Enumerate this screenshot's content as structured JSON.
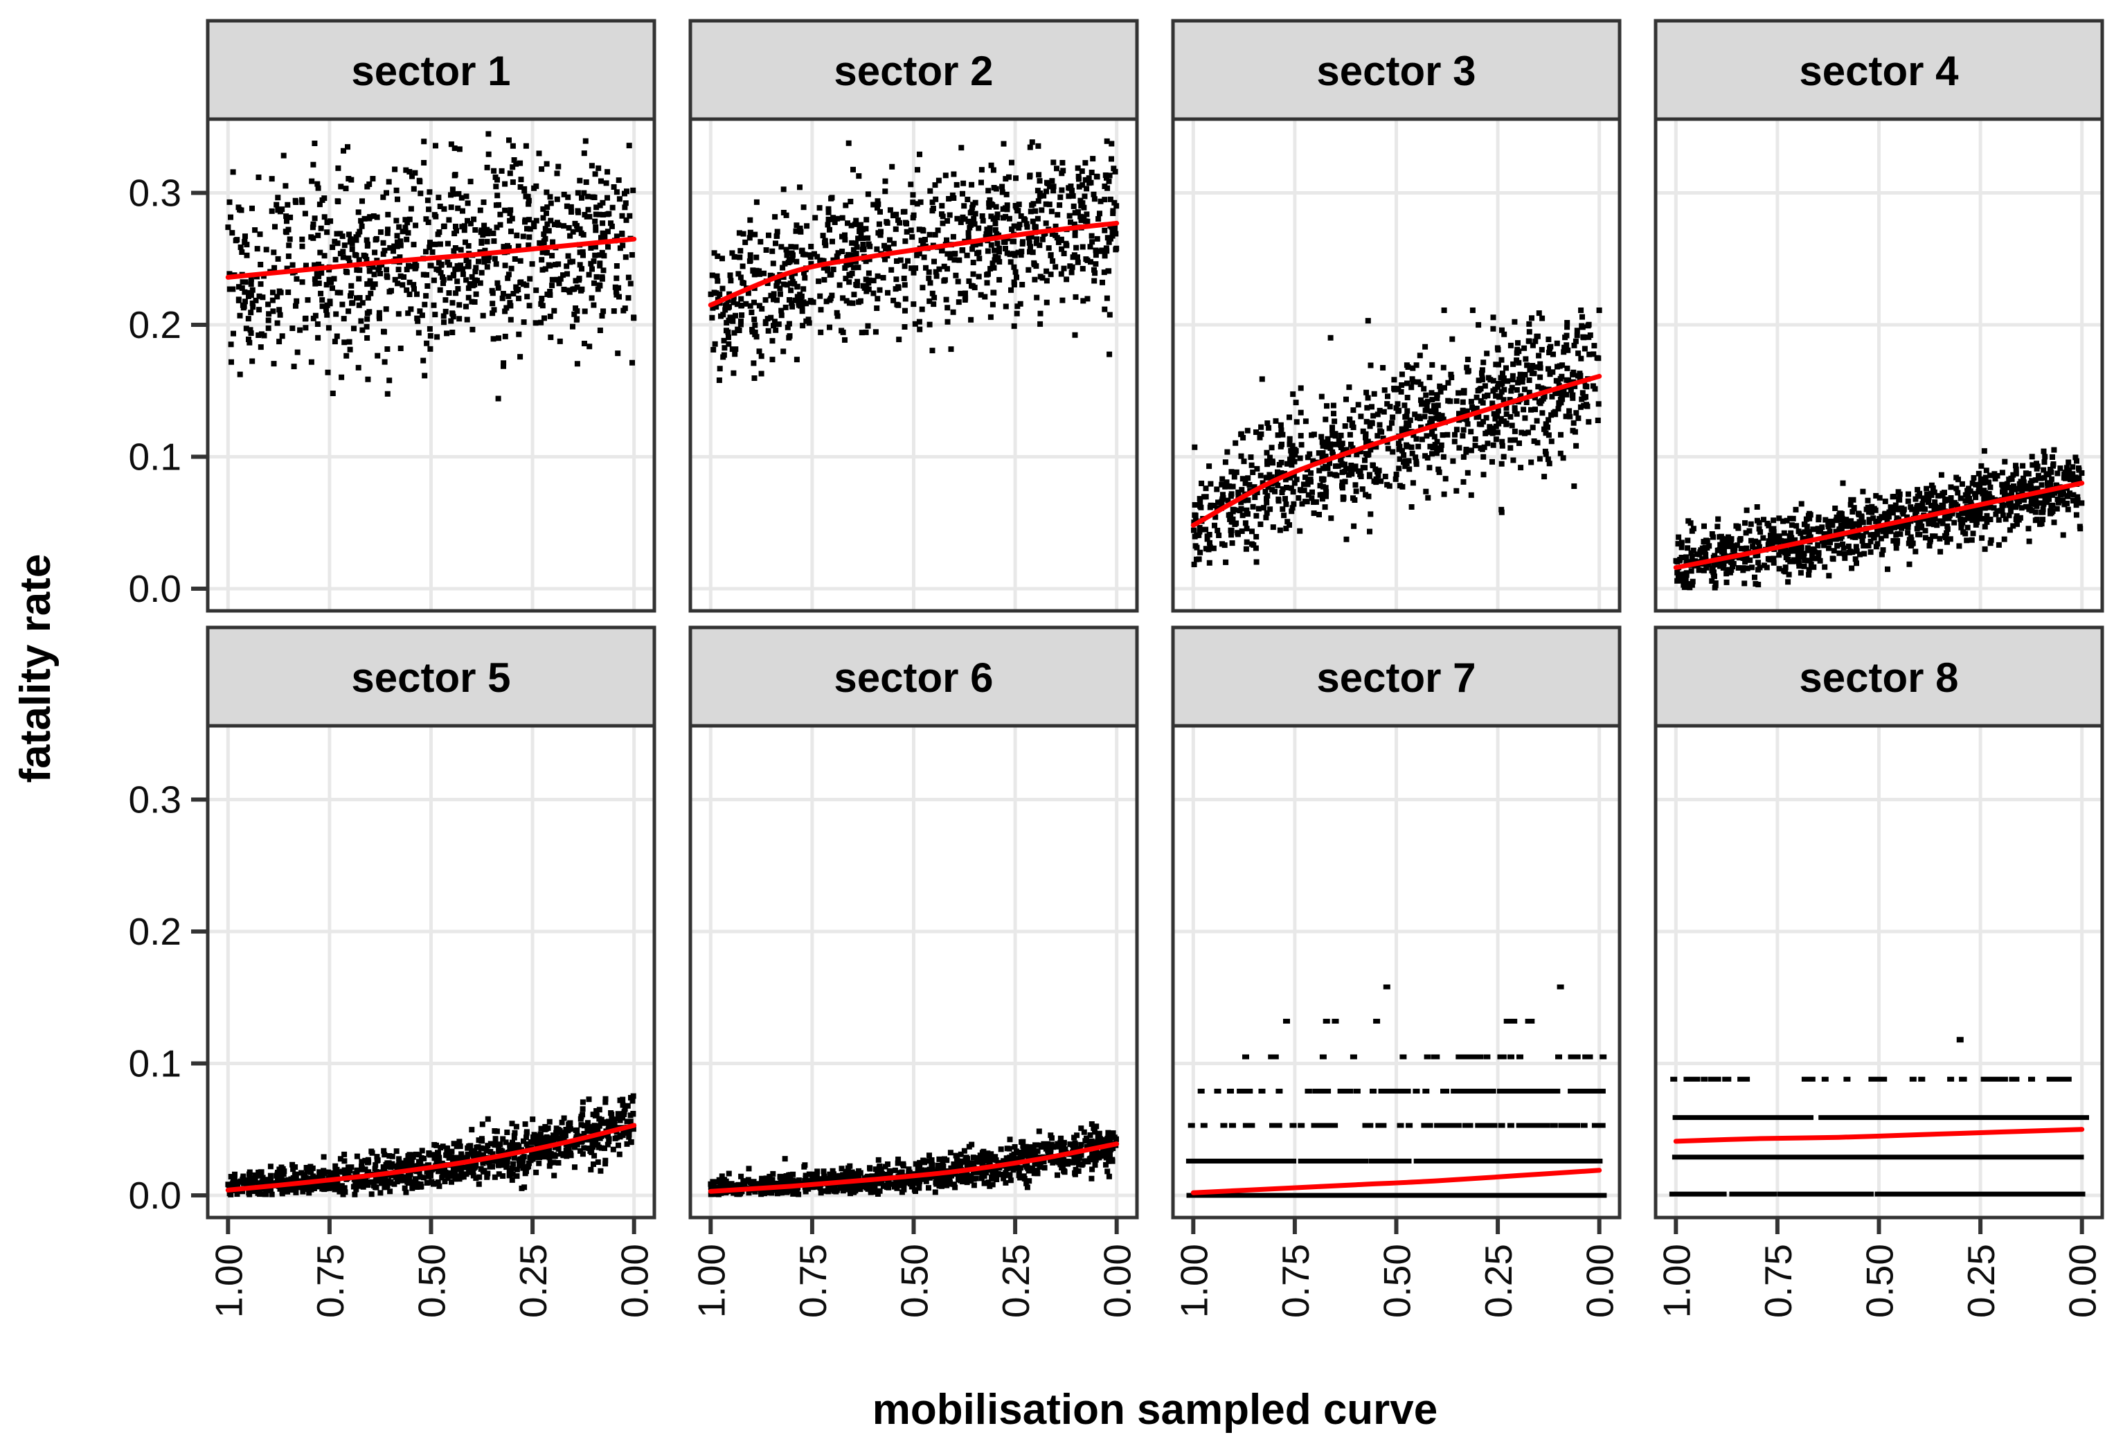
{
  "figure": {
    "kind": "faceted scatter plot with loess trend",
    "facet_rows": 2,
    "facet_cols": 4,
    "background": "#ffffff"
  },
  "axes": {
    "x": {
      "title": "mobilisation sampled curve",
      "tick_labels": [
        "1.00",
        "0.75",
        "0.50",
        "0.25",
        "0.00"
      ],
      "tick_values": [
        1.0,
        0.75,
        0.5,
        0.25,
        0.0
      ],
      "direction": "reversed",
      "range": [
        1.05,
        -0.05
      ],
      "tick_label_angle": 90
    },
    "y": {
      "title": "fatality rate",
      "tick_labels": [
        "0.3",
        "0.2",
        "0.1",
        "0.0"
      ],
      "tick_values": [
        0.3,
        0.2,
        0.1,
        0.0
      ],
      "range": [
        -0.017,
        0.356
      ]
    }
  },
  "style": {
    "strip_fill": "#d9d9d9",
    "panel_fill": "#ffffff",
    "grid_color": "#e8e8e8",
    "border_color": "#333333",
    "tick_color": "#333333",
    "point_color": "#000000",
    "trend_color": "#ff0000",
    "grid": "major-only"
  },
  "chart_data": [
    {
      "label": "sector 1",
      "type": "scatter",
      "trend": {
        "x": [
          1.0,
          0.8,
          0.6,
          0.4,
          0.2,
          0.0
        ],
        "y": [
          0.236,
          0.242,
          0.248,
          0.253,
          0.259,
          0.265
        ]
      },
      "scatter": {
        "kind": "gaussian",
        "n": 880,
        "seed": 101,
        "sd": 0.038,
        "sd_slope": 0,
        "clip": [
          0.131,
          0.346
        ]
      }
    },
    {
      "label": "sector 2",
      "type": "scatter",
      "trend": {
        "x": [
          1.0,
          0.8,
          0.6,
          0.4,
          0.2,
          0.0
        ],
        "y": [
          0.215,
          0.24,
          0.252,
          0.261,
          0.27,
          0.277
        ]
      },
      "scatter": {
        "kind": "gaussian",
        "n": 900,
        "seed": 102,
        "sd": 0.03,
        "sd_slope": 0,
        "clip": [
          0.158,
          0.342
        ],
        "left_tail": {
          "t_max": 0.22,
          "prob": 0.3,
          "max_drop": 0.055
        }
      }
    },
    {
      "label": "sector 3",
      "type": "scatter",
      "trend": {
        "x": [
          1.0,
          0.8,
          0.6,
          0.4,
          0.2,
          0.0
        ],
        "y": [
          0.048,
          0.082,
          0.105,
          0.124,
          0.143,
          0.161
        ]
      },
      "scatter": {
        "kind": "gaussian",
        "n": 950,
        "seed": 103,
        "sd": 0.021,
        "sd_slope": 0.009,
        "clip": [
          0.006,
          0.211
        ],
        "upper_outlier": {
          "prob": 0.035,
          "min": 0.015,
          "max": 0.05
        }
      }
    },
    {
      "label": "sector 4",
      "type": "scatter",
      "trend": {
        "x": [
          1.0,
          0.8,
          0.6,
          0.4,
          0.2,
          0.0
        ],
        "y": [
          0.016,
          0.028,
          0.041,
          0.054,
          0.067,
          0.08
        ]
      },
      "scatter": {
        "kind": "gaussian",
        "n": 1000,
        "seed": 104,
        "sd": 0.0125,
        "sd_slope": 0,
        "clip": [
          0.0005,
          0.107
        ]
      }
    },
    {
      "label": "sector 5",
      "type": "scatter",
      "trend": {
        "x": [
          1.0,
          0.8,
          0.6,
          0.4,
          0.2,
          0.0
        ],
        "y": [
          0.004,
          0.01,
          0.017,
          0.026,
          0.038,
          0.053
        ]
      },
      "scatter": {
        "kind": "gaussian",
        "n": 1000,
        "seed": 105,
        "sd": 0.006,
        "sd_slope": 0.005,
        "clip": [
          0.0005,
          0.077
        ]
      }
    },
    {
      "label": "sector 6",
      "type": "scatter",
      "trend": {
        "x": [
          1.0,
          0.8,
          0.6,
          0.4,
          0.2,
          0.0
        ],
        "y": [
          0.003,
          0.007,
          0.012,
          0.018,
          0.027,
          0.039
        ]
      },
      "scatter": {
        "kind": "gaussian",
        "n": 1000,
        "seed": 106,
        "sd": 0.0045,
        "sd_slope": 0.004,
        "clip": [
          0.0005,
          0.067
        ]
      }
    },
    {
      "label": "sector 7",
      "type": "scatter",
      "trend": {
        "x": [
          1.0,
          0.8,
          0.6,
          0.4,
          0.2,
          0.0
        ],
        "y": [
          0.002,
          0.005,
          0.008,
          0.011,
          0.015,
          0.019
        ]
      },
      "scatter": {
        "kind": "discrete",
        "n": 880,
        "seed": 107,
        "levels": [
          0,
          0.026,
          0.053,
          0.079,
          0.105,
          0.132,
          0.158
        ],
        "base": [
          0.66,
          0.27,
          0.04,
          0.02,
          0.004,
          0.002,
          0.001
        ],
        "slope": [
          -0.34,
          0.02,
          0.1,
          0.14,
          0.05,
          0.02,
          0.008
        ]
      }
    },
    {
      "label": "sector 8",
      "type": "scatter",
      "trend": {
        "x": [
          1.0,
          0.8,
          0.6,
          0.4,
          0.2,
          0.0
        ],
        "y": [
          0.041,
          0.043,
          0.044,
          0.046,
          0.048,
          0.05
        ]
      },
      "scatter": {
        "kind": "discrete",
        "n": 920,
        "seed": 108,
        "levels": [
          0.001,
          0.029,
          0.059,
          0.088
        ],
        "base": [
          0.34,
          0.32,
          0.3,
          0.03
        ],
        "slope": [
          0,
          -0.02,
          0,
          0.05
        ],
        "outliers": [
          {
            "x": 0.3,
            "y": 0.118
          }
        ]
      }
    }
  ]
}
